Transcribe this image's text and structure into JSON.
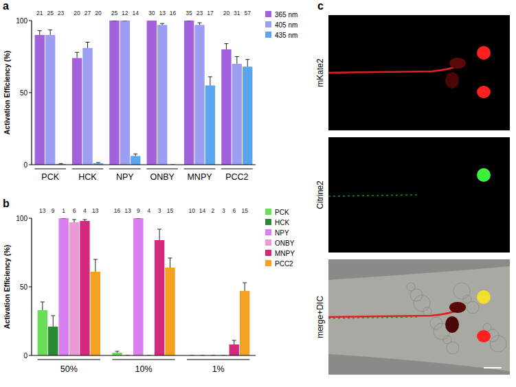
{
  "chart_data": [
    {
      "type": "bar",
      "label": "a",
      "y_label": "Activation Efficiency (%)",
      "categories": [
        "PCK",
        "HCK",
        "NPY",
        "ONBY",
        "MNPY",
        "PCC2"
      ],
      "ylim": [
        0,
        100
      ],
      "yticks": [
        0,
        50,
        100
      ],
      "legend": "right",
      "series": [
        {
          "name": "365 nm",
          "color": "#a262dc",
          "values": [
            90,
            74,
            100,
            100,
            100,
            80
          ],
          "errors": [
            3,
            4,
            0,
            0.5,
            0,
            4
          ],
          "counts": [
            21,
            20,
            25,
            30,
            35,
            20
          ]
        },
        {
          "name": "405 nm",
          "color": "#9c9ef2",
          "values": [
            90,
            81,
            100,
            97,
            97,
            70
          ],
          "errors": [
            3.5,
            4,
            0,
            1,
            1.5,
            5
          ],
          "counts": [
            25,
            27,
            12,
            13,
            23,
            31
          ]
        },
        {
          "name": "435 nm",
          "color": "#5aa6ee",
          "values": [
            0.5,
            1,
            6,
            0,
            55,
            68
          ],
          "errors": [
            0.3,
            0.5,
            1.5,
            0,
            6,
            5
          ],
          "counts": [
            23,
            20,
            14,
            16,
            17,
            57
          ]
        }
      ]
    },
    {
      "type": "bar",
      "label": "b",
      "y_label": "Activation Efficiency (%)",
      "categories": [
        "50%",
        "10%",
        "1%"
      ],
      "ylim": [
        0,
        100
      ],
      "yticks": [
        0,
        50,
        100
      ],
      "legend": "right",
      "series": [
        {
          "name": "PCK",
          "color": "#6bdc55",
          "values": [
            33,
            2,
            0
          ],
          "errors": [
            6,
            1,
            0
          ],
          "counts": [
            13,
            16,
            10
          ]
        },
        {
          "name": "HCK",
          "color": "#2a8a32",
          "values": [
            21,
            0,
            0
          ],
          "errors": [
            8,
            0,
            0
          ],
          "counts": [
            9,
            13,
            14
          ]
        },
        {
          "name": "NPY",
          "color": "#d97ff0",
          "values": [
            100,
            100,
            0
          ],
          "errors": [
            0,
            0,
            0
          ],
          "counts": [
            1,
            9,
            2
          ]
        },
        {
          "name": "ONBY",
          "color": "#ec9ad6",
          "values": [
            97,
            0,
            0
          ],
          "errors": [
            2,
            0,
            0
          ],
          "counts": [
            6,
            4,
            3
          ]
        },
        {
          "name": "MNPY",
          "color": "#d42a7e",
          "values": [
            98,
            84,
            8
          ],
          "errors": [
            1,
            8,
            3
          ],
          "counts": [
            4,
            3,
            6
          ]
        },
        {
          "name": "PCC2",
          "color": "#f5a223",
          "values": [
            61,
            64,
            47
          ],
          "errors": [
            9,
            7,
            6
          ],
          "counts": [
            13,
            15,
            15
          ]
        }
      ]
    }
  ],
  "image_panel": {
    "label": "c",
    "rows": [
      "mKate2",
      "Citrine2",
      "merge+DIC"
    ]
  }
}
